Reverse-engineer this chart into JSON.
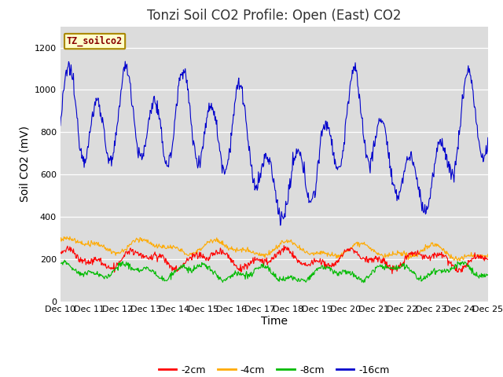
{
  "title": "Tonzi Soil CO2 Profile: Open (East) CO2",
  "ylabel": "Soil CO2 (mV)",
  "xlabel": "Time",
  "ylim": [
    0,
    1300
  ],
  "yticks": [
    0,
    200,
    400,
    600,
    800,
    1000,
    1200
  ],
  "bg_color": "#dcdcdc",
  "fig_color": "#ffffff",
  "label_box_text": "TZ_soilco2",
  "label_box_bg": "#ffffcc",
  "label_box_border": "#aa8800",
  "label_text_color": "#880000",
  "legend_entries": [
    "-2cm",
    "-4cm",
    "-8cm",
    "-16cm"
  ],
  "legend_colors": [
    "#ff0000",
    "#ffaa00",
    "#00bb00",
    "#0000cc"
  ],
  "line_colors": {
    "m16cm": "#0000cc",
    "m4cm": "#ffaa00",
    "m2cm": "#ff0000",
    "m8cm": "#00bb00"
  },
  "n_points": 720,
  "xtick_labels": [
    "Dec 10",
    "Dec 11",
    "Dec 12",
    "Dec 13",
    "Dec 14",
    "Dec 15",
    "Dec 16",
    "Dec 17",
    "Dec 18",
    "Dec 19",
    "Dec 20",
    "Dec 21",
    "Dec 22",
    "Dec 23",
    "Dec 24",
    "Dec 25"
  ],
  "title_fontsize": 12,
  "axis_fontsize": 10,
  "tick_fontsize": 8
}
